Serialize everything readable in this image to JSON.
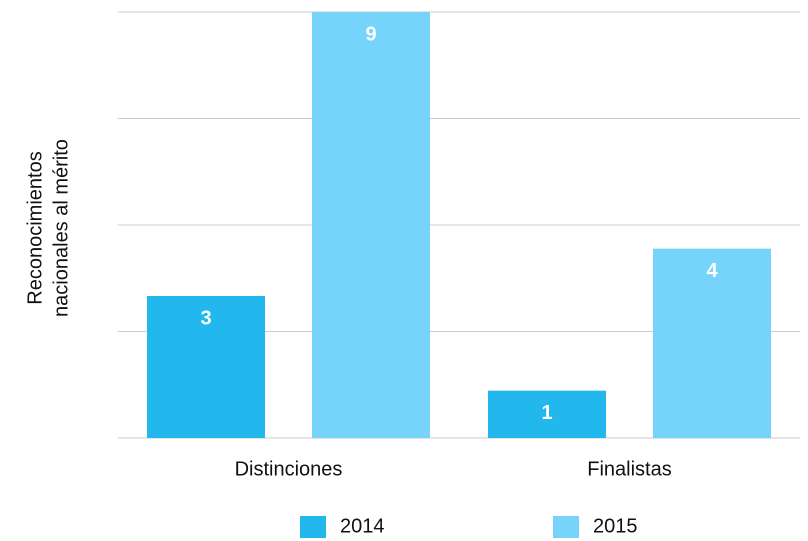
{
  "chart_data": {
    "type": "bar",
    "ylabel": [
      "Reconocimientos",
      "nacionales al mérito"
    ],
    "categories": [
      "Distinciones",
      "Finalistas"
    ],
    "series": [
      {
        "name": "2014",
        "color": "#22b8ee",
        "values": [
          3,
          1
        ]
      },
      {
        "name": "2015",
        "color": "#76d4fb",
        "values": [
          9,
          4
        ]
      }
    ],
    "ylim": [
      0,
      9
    ],
    "yticks": [
      0,
      2.25,
      4.5,
      6.75,
      9
    ],
    "grid": true,
    "legend": "bottom"
  }
}
